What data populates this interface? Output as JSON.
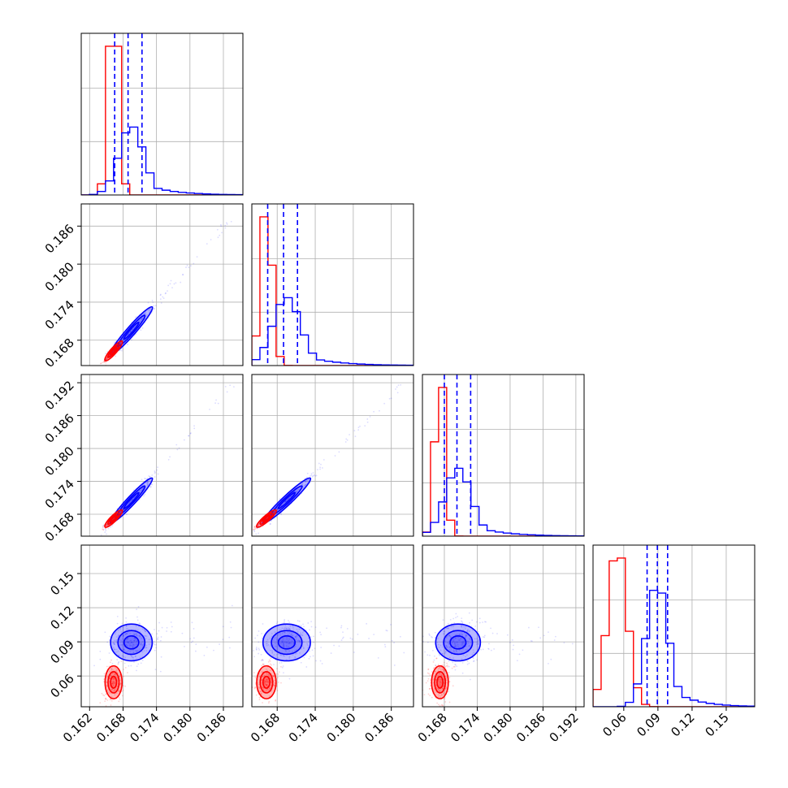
{
  "chart_data": {
    "type": "corner",
    "colors": {
      "posterior_a": "#0000ff",
      "posterior_b": "#ff0000",
      "grid": "#b0b0b0",
      "frame": "#000000"
    },
    "parameters": [
      {
        "range": [
          0.1605,
          0.1895
        ],
        "ticks": [
          "0.162",
          "0.168",
          "0.174",
          "0.180",
          "0.186"
        ],
        "ticks_bottom": [
          "0.162",
          "0.168",
          "0.174",
          "0.180",
          "0.186"
        ],
        "ticks_left": [],
        "blue": {
          "mean": 0.1695,
          "sd": 0.0022,
          "quantiles": [
            0.1665,
            0.1689,
            0.1714
          ],
          "tail_to": 0.188
        },
        "red": {
          "mean": 0.1663,
          "sd": 0.0009,
          "hist_max": 1.0
        }
      },
      {
        "range": [
          0.164,
          0.1895
        ],
        "ticks": [
          "0.168",
          "0.174",
          "0.180",
          "0.186"
        ],
        "ticks_bottom": [
          "0.168",
          "0.174",
          "0.180",
          "0.186"
        ],
        "ticks_left": [
          "0.168",
          "0.174",
          "0.180",
          "0.186"
        ],
        "blue": {
          "mean": 0.1695,
          "sd": 0.0022,
          "quantiles": [
            0.1665,
            0.169,
            0.1712
          ],
          "tail_to": 0.188
        },
        "red": {
          "mean": 0.1663,
          "sd": 0.0009,
          "hist_max": 1.0
        }
      },
      {
        "range": [
          0.164,
          0.1935
        ],
        "ticks": [
          "0.168",
          "0.174",
          "0.180",
          "0.186",
          "0.192"
        ],
        "ticks_bottom": [
          "0.168",
          "0.174",
          "0.180",
          "0.186",
          "0.192"
        ],
        "ticks_left": [
          "0.168",
          "0.174",
          "0.180",
          "0.186",
          "0.192"
        ],
        "blue": {
          "mean": 0.1705,
          "sd": 0.0024,
          "quantiles": [
            0.168,
            0.1703,
            0.1728
          ],
          "tail_to": 0.192
        },
        "red": {
          "mean": 0.1672,
          "sd": 0.0009,
          "hist_max": 1.0
        }
      },
      {
        "range": [
          0.033,
          0.175
        ],
        "ticks": [
          "0.06",
          "0.09",
          "0.12",
          "0.15"
        ],
        "ticks_bottom": [
          "0.06",
          "0.09",
          "0.12",
          "0.15"
        ],
        "ticks_left": [
          "0.06",
          "0.09",
          "0.12",
          "0.15"
        ],
        "blue": {
          "mean": 0.0895,
          "sd": 0.0095,
          "quantiles": [
            0.0805,
            0.0895,
            0.0985
          ]
        },
        "red": {
          "mean": 0.0545,
          "sd": 0.0085
        }
      }
    ],
    "grid": true,
    "hist_bins": 20
  }
}
